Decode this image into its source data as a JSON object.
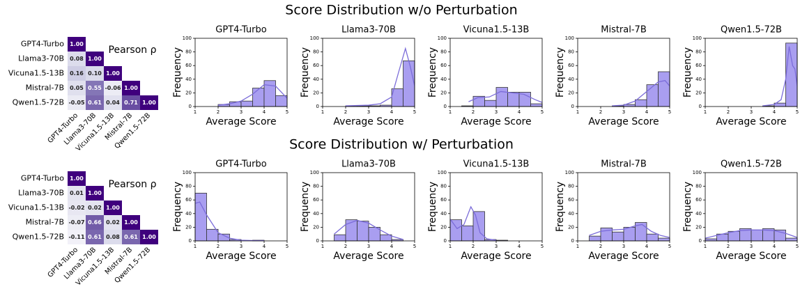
{
  "figure_titles": [
    "Score Distribution w/o Perturbation",
    "Score Distribution w/ Perturbation"
  ],
  "chart_data": [
    {
      "type": "heatmap",
      "labels": [
        "GPT4-Turbo",
        "Llama3-70B",
        "Vicuna1.5-13B",
        "Mistral-7B",
        "Qwen1.5-72B"
      ],
      "values": [
        [
          1.0
        ],
        [
          0.08,
          1.0
        ],
        [
          0.16,
          0.1,
          1.0
        ],
        [
          0.05,
          0.55,
          -0.06,
          1.0
        ],
        [
          -0.05,
          0.61,
          0.04,
          0.71,
          1.0
        ]
      ],
      "value_labels": [
        [
          "1.00"
        ],
        [
          "0.08",
          "1.00"
        ],
        [
          "0.16",
          "0.10",
          "1.00"
        ],
        [
          "0.05",
          "0.55",
          "-0.06",
          "1.00"
        ],
        [
          "-0.05",
          "0.61",
          "0.04",
          "0.71",
          "1.00"
        ]
      ],
      "legend_title": "Pearson ρ",
      "colormap": "Purples",
      "clim": [
        -0.2,
        1
      ]
    },
    {
      "type": "histogram",
      "title": "GPT4-Turbo",
      "xlabel": "Average Score",
      "ylabel": "Frequency",
      "bins": [
        2,
        2.5,
        3,
        3.5,
        4,
        4.5,
        5
      ],
      "values": [
        3,
        7,
        8,
        27,
        38,
        16
      ],
      "color": "#a99ef0",
      "kde": {
        "x": [
          2,
          2.5,
          3,
          3.5,
          4,
          4.5,
          5
        ],
        "values": [
          2,
          4,
          8,
          18,
          32,
          30,
          12
        ],
        "color": "#7b6cd9"
      },
      "xlim": [
        1,
        5
      ],
      "xticks": [
        1,
        2,
        3,
        4,
        5
      ],
      "ylim": [
        0,
        100
      ],
      "yticks": [
        0,
        20,
        40,
        60,
        80,
        100
      ]
    },
    {
      "type": "histogram",
      "title": "Llama3-70B",
      "xlabel": "Average Score",
      "ylabel": "Frequency",
      "bins": [
        2,
        2.5,
        3,
        3.5,
        4,
        4.5,
        5
      ],
      "values": [
        1,
        1,
        1,
        2,
        26,
        67
      ],
      "color": "#a99ef0",
      "kde": {
        "x": [
          2,
          3,
          3.5,
          4,
          4.3,
          4.6,
          4.8,
          5
        ],
        "values": [
          1,
          2,
          4,
          14,
          50,
          85,
          60,
          30
        ],
        "color": "#7b6cd9"
      },
      "xlim": [
        1,
        5
      ],
      "xticks": [
        1,
        2,
        3,
        4,
        5
      ],
      "ylim": [
        0,
        100
      ],
      "yticks": [
        0,
        20,
        40,
        60,
        80,
        100
      ]
    },
    {
      "type": "histogram",
      "title": "Vicuna1.5-13B",
      "xlabel": "Average Score",
      "ylabel": "Frequency",
      "bins": [
        1.5,
        2,
        2.5,
        3,
        3.5,
        4,
        4.5,
        5
      ],
      "values": [
        1,
        15,
        9,
        28,
        21,
        21,
        4
      ],
      "color": "#a99ef0",
      "kde": {
        "x": [
          1.8,
          2.2,
          2.7,
          3.2,
          3.7,
          4.2,
          4.7,
          5
        ],
        "values": [
          7,
          13,
          14,
          22,
          20,
          18,
          10,
          6
        ],
        "color": "#7b6cd9"
      },
      "xlim": [
        1,
        5
      ],
      "xticks": [
        1,
        2,
        3,
        4,
        5
      ],
      "ylim": [
        0,
        100
      ],
      "yticks": [
        0,
        20,
        40,
        60,
        80,
        100
      ]
    },
    {
      "type": "histogram",
      "title": "Mistral-7B",
      "xlabel": "Average Score",
      "ylabel": "Frequency",
      "bins": [
        2.5,
        3,
        3.5,
        4,
        4.5,
        5
      ],
      "values": [
        1,
        3,
        10,
        32,
        51
      ],
      "color": "#a99ef0",
      "kde": {
        "x": [
          2.5,
          3,
          3.5,
          4,
          4.5,
          4.8,
          5
        ],
        "values": [
          1,
          2,
          8,
          22,
          36,
          38,
          30
        ],
        "color": "#7b6cd9"
      },
      "xlim": [
        1,
        5
      ],
      "xticks": [
        1,
        2,
        3,
        4,
        5
      ],
      "ylim": [
        0,
        100
      ],
      "yticks": [
        0,
        20,
        40,
        60,
        80,
        100
      ]
    },
    {
      "type": "histogram",
      "title": "Qwen1.5-72B",
      "xlabel": "Average Score",
      "ylabel": "Frequency",
      "bins": [
        3.5,
        4,
        4.5,
        5
      ],
      "values": [
        1,
        5,
        93
      ],
      "color": "#a99ef0",
      "kde": {
        "x": [
          3.5,
          4,
          4.3,
          4.5,
          4.65,
          4.8,
          4.9,
          5
        ],
        "values": [
          1,
          3,
          10,
          40,
          88,
          60,
          55,
          30
        ],
        "color": "#7b6cd9"
      },
      "xlim": [
        1,
        5
      ],
      "xticks": [
        1,
        2,
        3,
        4,
        5
      ],
      "ylim": [
        0,
        100
      ],
      "yticks": [
        0,
        20,
        40,
        60,
        80,
        100
      ]
    },
    {
      "type": "heatmap",
      "labels": [
        "GPT4-Turbo",
        "Llama3-70B",
        "Vicuna1.5-13B",
        "Mistral-7B",
        "Qwen1.5-72B"
      ],
      "values": [
        [
          1.0
        ],
        [
          0.01,
          1.0
        ],
        [
          -0.02,
          0.02,
          1.0
        ],
        [
          -0.07,
          0.66,
          0.02,
          1.0
        ],
        [
          -0.11,
          0.61,
          0.08,
          0.61,
          1.0
        ]
      ],
      "value_labels": [
        [
          "1.00"
        ],
        [
          "0.01",
          "1.00"
        ],
        [
          "-0.02",
          "0.02",
          "1.00"
        ],
        [
          "-0.07",
          "0.66",
          "0.02",
          "1.00"
        ],
        [
          "-0.11",
          "0.61",
          "0.08",
          "0.61",
          "1.00"
        ]
      ],
      "legend_title": "Pearson ρ",
      "colormap": "Purples",
      "clim": [
        -0.2,
        1
      ]
    },
    {
      "type": "histogram",
      "title": "GPT4-Turbo",
      "xlabel": "Average Score",
      "ylabel": "Frequency",
      "bins": [
        1,
        1.5,
        2,
        2.5,
        3,
        3.5,
        4
      ],
      "values": [
        70,
        17,
        10,
        2,
        0,
        1
      ],
      "color": "#a99ef0",
      "kde": {
        "x": [
          1,
          1.2,
          1.5,
          2,
          2.5,
          3,
          3.5,
          4
        ],
        "values": [
          55,
          57,
          38,
          12,
          4,
          1,
          0.5,
          0.5
        ],
        "color": "#7b6cd9"
      },
      "xlim": [
        1,
        5
      ],
      "xticks": [
        1,
        2,
        3,
        4,
        5
      ],
      "ylim": [
        0,
        100
      ],
      "yticks": [
        0,
        20,
        40,
        60,
        80,
        100
      ]
    },
    {
      "type": "histogram",
      "title": "Llama3-70B",
      "xlabel": "Average Score",
      "ylabel": "Frequency",
      "bins": [
        1.5,
        2,
        2.5,
        3,
        3.5,
        4,
        4.5
      ],
      "values": [
        9,
        31,
        29,
        20,
        9,
        2
      ],
      "color": "#a99ef0",
      "kde": {
        "x": [
          1.5,
          2,
          2.5,
          3,
          3.5,
          4,
          4.5
        ],
        "values": [
          10,
          24,
          30,
          26,
          16,
          7,
          2
        ],
        "color": "#7b6cd9"
      },
      "xlim": [
        1,
        5
      ],
      "xticks": [
        1,
        2,
        3,
        4,
        5
      ],
      "ylim": [
        0,
        100
      ],
      "yticks": [
        0,
        20,
        40,
        60,
        80,
        100
      ]
    },
    {
      "type": "histogram",
      "title": "Vicuna1.5-13B",
      "xlabel": "Average Score",
      "ylabel": "Frequency",
      "bins": [
        1,
        1.5,
        2,
        2.5,
        3,
        3.5
      ],
      "values": [
        31,
        22,
        43,
        2,
        1
      ],
      "color": "#a99ef0",
      "kde": {
        "x": [
          1,
          1.3,
          1.6,
          1.9,
          2.1,
          2.3,
          2.6,
          3
        ],
        "values": [
          32,
          18,
          24,
          50,
          38,
          12,
          3,
          1
        ],
        "color": "#7b6cd9"
      },
      "xlim": [
        1,
        5
      ],
      "xticks": [
        1,
        2,
        3,
        4,
        5
      ],
      "ylim": [
        0,
        100
      ],
      "yticks": [
        0,
        20,
        40,
        60,
        80,
        100
      ]
    },
    {
      "type": "histogram",
      "title": "Mistral-7B",
      "xlabel": "Average Score",
      "ylabel": "Frequency",
      "bins": [
        1.5,
        2,
        2.5,
        3,
        3.5,
        4,
        4.5,
        5
      ],
      "values": [
        7,
        19,
        13,
        20,
        27,
        10,
        4
      ],
      "color": "#a99ef0",
      "kde": {
        "x": [
          1.5,
          2,
          2.5,
          3,
          3.5,
          3.8,
          4.2,
          4.6,
          5
        ],
        "values": [
          8,
          14,
          16,
          17,
          22,
          24,
          14,
          8,
          5
        ],
        "color": "#7b6cd9"
      },
      "xlim": [
        1,
        5
      ],
      "xticks": [
        1,
        2,
        3,
        4,
        5
      ],
      "ylim": [
        0,
        100
      ],
      "yticks": [
        0,
        20,
        40,
        60,
        80,
        100
      ]
    },
    {
      "type": "histogram",
      "title": "Qwen1.5-72B",
      "xlabel": "Average Score",
      "ylabel": "Frequency",
      "bins": [
        1,
        1.5,
        2,
        2.5,
        3,
        3.5,
        4,
        4.5,
        5
      ],
      "values": [
        3,
        10,
        14,
        18,
        16,
        18,
        16,
        4
      ],
      "color": "#a99ef0",
      "kde": {
        "x": [
          1,
          1.5,
          2,
          2.5,
          3,
          3.5,
          4,
          4.5,
          5
        ],
        "values": [
          4,
          8,
          12,
          15,
          16,
          16,
          15,
          11,
          5
        ],
        "color": "#7b6cd9"
      },
      "xlim": [
        1,
        5
      ],
      "xticks": [
        1,
        2,
        3,
        4,
        5
      ],
      "ylim": [
        0,
        100
      ],
      "yticks": [
        0,
        20,
        40,
        60,
        80,
        100
      ]
    }
  ]
}
